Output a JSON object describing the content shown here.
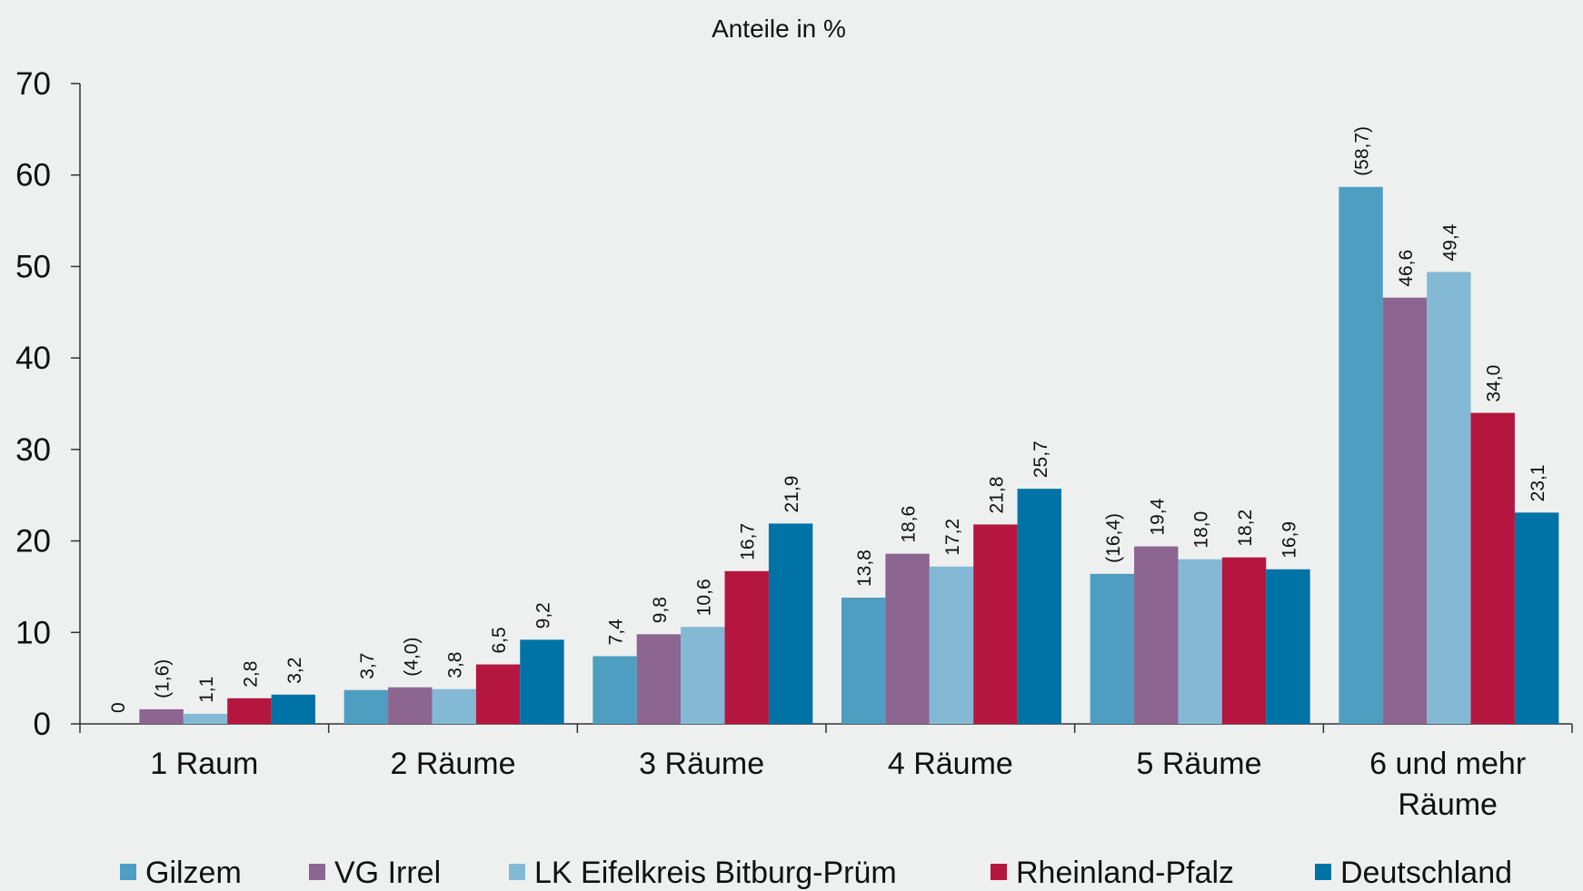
{
  "chart_data": {
    "type": "bar",
    "title": "Anteile in %",
    "ylim": [
      0,
      70
    ],
    "yticks": [
      0,
      10,
      20,
      30,
      40,
      50,
      60,
      70
    ],
    "categories": [
      "1 Raum",
      "2 Räume",
      "3 Räume",
      "4 Räume",
      "5 Räume",
      "6 und mehr Räume"
    ],
    "category_lines": [
      [
        "1 Raum"
      ],
      [
        "2 Räume"
      ],
      [
        "3 Räume"
      ],
      [
        "4 Räume"
      ],
      [
        "5 Räume"
      ],
      [
        "6 und mehr",
        "Räume"
      ]
    ],
    "grid": false,
    "legend_position": "bottom",
    "series": [
      {
        "name": "Gilzem",
        "color": "#4e9ec1",
        "values": [
          0,
          3.7,
          7.4,
          13.8,
          16.4,
          58.7
        ],
        "labels": [
          "0",
          "3,7",
          "7,4",
          "13,8",
          "(16,4)",
          "(58,7)"
        ]
      },
      {
        "name": "VG Irrel",
        "color": "#8c6591",
        "values": [
          1.6,
          4.0,
          9.8,
          18.6,
          19.4,
          46.6
        ],
        "labels": [
          "(1,6)",
          "(4,0)",
          "9,8",
          "18,6",
          "19,4",
          "46,6"
        ]
      },
      {
        "name": "LK Eifelkreis Bitburg-Prüm",
        "color": "#83b9d5",
        "values": [
          1.1,
          3.8,
          10.6,
          17.2,
          18.0,
          49.4
        ],
        "labels": [
          "1,1",
          "3,8",
          "10,6",
          "17,2",
          "18,0",
          "49,4"
        ]
      },
      {
        "name": "Rheinland-Pfalz",
        "color": "#b5163f",
        "values": [
          2.8,
          6.5,
          16.7,
          21.8,
          18.2,
          34.0
        ],
        "labels": [
          "2,8",
          "6,5",
          "16,7",
          "21,8",
          "18,2",
          "34,0"
        ]
      },
      {
        "name": "Deutschland",
        "color": "#0073a6",
        "values": [
          3.2,
          9.2,
          21.9,
          25.7,
          16.9,
          23.1
        ],
        "labels": [
          "3,2",
          "9,2",
          "21,9",
          "25,7",
          "16,9",
          "23,1"
        ]
      }
    ]
  }
}
